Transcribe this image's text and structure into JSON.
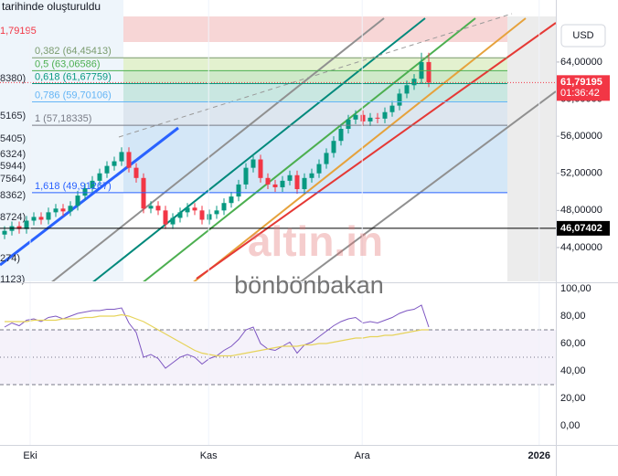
{
  "header": "tarihinde oluşturuldu",
  "currency": "USD",
  "watermarks": [
    "altin.in",
    "bönbönbakan"
  ],
  "left_labels": [
    "1,79195",
    "8380)",
    "5165)",
    "5405)",
    "6324)",
    "5944)",
    "7564)",
    "8362)",
    "8724)",
    "274)",
    "1123)"
  ],
  "chart_data": [
    {
      "type": "candlestick",
      "categories": [
        null,
        null,
        null,
        null,
        null,
        null,
        null,
        null,
        null,
        null,
        null,
        null,
        null,
        null,
        null,
        null,
        null,
        null,
        null,
        null,
        null,
        null,
        null,
        null,
        null,
        null,
        null,
        null,
        null,
        null,
        null,
        null,
        null,
        null,
        null,
        null,
        null,
        null,
        null,
        null,
        null,
        null,
        null,
        null,
        null,
        null,
        null,
        null,
        null,
        null,
        null,
        null,
        null,
        null,
        null,
        null,
        null,
        null,
        null
      ],
      "open": [
        45.4,
        45.8,
        46.3,
        46.0,
        46.9,
        47.3,
        47.0,
        47.8,
        48.2,
        47.9,
        48.5,
        49.6,
        50.4,
        51.2,
        52.0,
        52.8,
        53.3,
        54.3,
        52.6,
        51.5,
        48.2,
        48.5,
        48.0,
        46.5,
        47.2,
        47.8,
        48.3,
        48.0,
        47.0,
        47.6,
        48.0,
        48.8,
        49.5,
        50.8,
        52.6,
        53.5,
        51.5,
        50.8,
        50.5,
        51.2,
        51.8,
        50.3,
        51.5,
        52.0,
        53.0,
        54.2,
        55.5,
        56.8,
        57.8,
        58.3,
        57.6,
        58.0,
        57.9,
        58.6,
        59.3,
        60.6,
        61.5,
        62.2,
        64.0
      ],
      "high": [
        46.3,
        46.8,
        46.8,
        47.4,
        47.8,
        47.8,
        48.3,
        48.7,
        48.7,
        49.0,
        50.1,
        50.9,
        51.7,
        52.5,
        53.3,
        53.8,
        54.8,
        54.8,
        53.1,
        52.0,
        49.0,
        49.0,
        48.5,
        47.7,
        48.3,
        48.8,
        48.8,
        48.5,
        48.1,
        48.5,
        49.3,
        50.0,
        51.3,
        53.1,
        54.0,
        54.0,
        52.0,
        51.3,
        51.7,
        52.3,
        52.3,
        52.0,
        52.5,
        53.5,
        54.7,
        56.0,
        57.3,
        58.3,
        58.8,
        58.8,
        58.5,
        58.5,
        59.1,
        59.8,
        61.1,
        62.0,
        62.7,
        65.0,
        65.0
      ],
      "low": [
        44.9,
        45.3,
        45.5,
        45.5,
        46.4,
        46.5,
        46.5,
        47.3,
        47.4,
        47.4,
        48.0,
        49.1,
        49.9,
        50.7,
        51.5,
        52.3,
        52.8,
        52.1,
        51.0,
        47.7,
        47.7,
        47.5,
        46.0,
        46.0,
        46.7,
        47.3,
        47.5,
        46.5,
        46.5,
        47.1,
        47.5,
        48.3,
        49.0,
        50.3,
        52.1,
        51.0,
        50.3,
        50.0,
        50.0,
        50.7,
        49.8,
        49.8,
        51.0,
        51.5,
        52.5,
        53.7,
        55.0,
        56.3,
        57.3,
        57.1,
        57.1,
        57.4,
        57.4,
        58.1,
        58.8,
        60.1,
        61.0,
        61.7,
        61.3
      ],
      "close": [
        45.8,
        46.3,
        46.0,
        46.9,
        47.3,
        47.0,
        47.8,
        48.2,
        47.9,
        48.5,
        49.6,
        50.4,
        51.2,
        52.0,
        52.8,
        53.3,
        54.3,
        52.6,
        51.5,
        48.2,
        48.5,
        48.0,
        46.5,
        47.2,
        47.8,
        48.3,
        48.0,
        47.0,
        47.6,
        48.0,
        48.8,
        49.5,
        50.8,
        52.6,
        53.5,
        51.5,
        50.8,
        50.5,
        51.2,
        51.8,
        50.3,
        51.5,
        52.0,
        53.0,
        54.2,
        55.5,
        56.8,
        57.8,
        58.3,
        57.6,
        58.0,
        57.9,
        58.6,
        59.3,
        60.6,
        61.5,
        62.2,
        64.0,
        61.79195
      ],
      "up_color": "#089981",
      "down_color": "#f23645",
      "xlim": [
        -0.625,
        75.375
      ],
      "xticks": [
        {
          "value": 3.5,
          "label": "Eki"
        },
        {
          "value": 27.9,
          "label": "Kas"
        },
        {
          "value": 48.9,
          "label": "Ara"
        },
        {
          "value": 73.1,
          "label": "2026"
        }
      ],
      "ylim": [
        40.35,
        70.69
      ],
      "yticks": [
        {
          "value": 44,
          "label": "44,00000"
        },
        {
          "value": 48,
          "label": "48,00000"
        },
        {
          "value": 52,
          "label": "52,00000"
        },
        {
          "value": 56,
          "label": "56,00000"
        },
        {
          "value": 60,
          "label": "60,00000"
        },
        {
          "value": 64,
          "label": "64,00000"
        }
      ],
      "fib_levels": [
        {
          "value": 64.45413,
          "label": "0,382 (64,45413)",
          "color": "#7a9b6e"
        },
        {
          "value": 63.06586,
          "label": "0,5 (63,06586)",
          "color": "#4caf50"
        },
        {
          "value": 61.67759,
          "label": "0,618 (61,67759)",
          "color": "#089981"
        },
        {
          "value": 59.70106,
          "label": "0,786 (59,70106)",
          "color": "#64b5f6"
        },
        {
          "value": 57.18335,
          "label": "1 (57,18335)",
          "color": "#787b86"
        },
        {
          "value": 49.91267,
          "label": "1,618 (49,91267)",
          "color": "#2962ff"
        }
      ],
      "price_lines": [
        {
          "value": 61.79195,
          "label": "61,79195",
          "color": "#f23645"
        },
        {
          "value": 46.07402,
          "label": "46,07402",
          "color": "#000000"
        }
      ],
      "countdown": "01:36:42"
    },
    {
      "type": "line",
      "series": [
        {
          "color": "#7e57c2",
          "values": [
            72,
            75,
            73,
            77,
            78,
            76,
            79,
            80,
            78,
            80,
            82,
            83,
            84,
            84,
            85,
            85,
            86,
            75,
            68,
            50,
            52,
            49,
            42,
            46,
            50,
            52,
            50,
            45,
            49,
            51,
            55,
            58,
            63,
            70,
            72,
            60,
            56,
            55,
            58,
            61,
            53,
            59,
            61,
            65,
            69,
            73,
            76,
            78,
            79,
            75,
            76,
            75,
            77,
            79,
            82,
            84,
            85,
            88,
            72
          ]
        },
        {
          "color": "#e6d35a",
          "values": [
            76,
            76,
            76,
            76,
            77,
            77,
            77,
            77,
            78,
            78,
            78,
            79,
            79,
            80,
            80,
            80,
            81,
            80,
            78,
            76,
            73,
            70,
            67,
            64,
            61,
            58,
            55,
            53,
            52,
            51,
            51,
            51,
            52,
            53,
            54,
            55,
            56,
            57,
            58,
            58,
            58,
            59,
            59,
            60,
            60,
            61,
            62,
            63,
            64,
            64,
            65,
            65,
            66,
            66,
            67,
            68,
            69,
            70,
            70
          ]
        }
      ],
      "ylim": [
        -14,
        104
      ],
      "yticks": [
        {
          "value": 0,
          "label": "0,00"
        },
        {
          "value": 20,
          "label": "20,00"
        },
        {
          "value": 40,
          "label": "40,00"
        },
        {
          "value": 60,
          "label": "60,00"
        },
        {
          "value": 80,
          "label": "80,00"
        },
        {
          "value": 100,
          "label": "100,00"
        }
      ],
      "hlines": [
        70,
        50,
        30
      ]
    }
  ]
}
